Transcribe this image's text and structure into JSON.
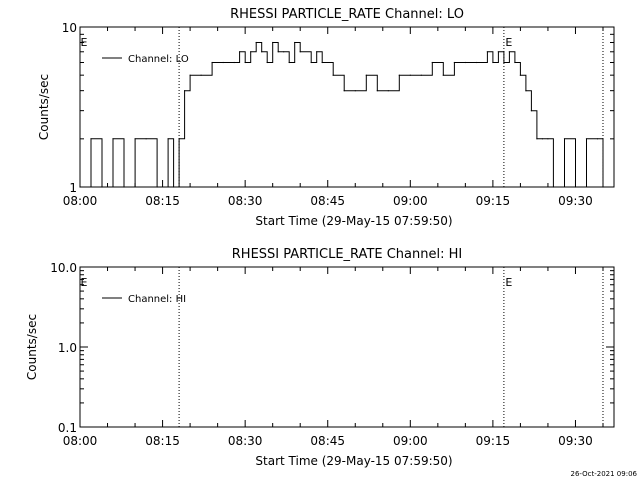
{
  "footer": {
    "date_stamp": "26-Oct-2021 09:06"
  },
  "chart_data": [
    {
      "type": "line",
      "title": "RHESSI PARTICLE_RATE Channel: LO",
      "xlabel": "Start Time (29-May-15 07:59:50)",
      "ylabel": "Counts/sec",
      "yscale": "log",
      "xlim": [
        "08:00",
        "09:37"
      ],
      "ylim": [
        1,
        10
      ],
      "x_ticks": [
        "08:00",
        "08:15",
        "08:30",
        "08:45",
        "09:00",
        "09:15",
        "09:30"
      ],
      "y_ticks": [
        "1",
        "10"
      ],
      "grid": false,
      "legend": {
        "position": "top-left",
        "entries": [
          "Channel: LO"
        ]
      },
      "marker_lines": [
        "08:18",
        "09:17",
        "09:35"
      ],
      "annotations": [
        "E",
        "E"
      ],
      "series": [
        {
          "name": "Channel: LO",
          "x": [
            "08:00",
            "08:02",
            "08:04",
            "08:06",
            "08:08",
            "08:10",
            "08:12",
            "08:14",
            "08:16",
            "08:17",
            "08:18",
            "08:19",
            "08:20",
            "08:22",
            "08:24",
            "08:26",
            "08:28",
            "08:29",
            "08:30",
            "08:31",
            "08:32",
            "08:33",
            "08:34",
            "08:35",
            "08:36",
            "08:37",
            "08:38",
            "08:39",
            "08:40",
            "08:42",
            "08:43",
            "08:44",
            "08:46",
            "08:48",
            "08:50",
            "08:52",
            "08:54",
            "08:56",
            "08:58",
            "09:00",
            "09:02",
            "09:04",
            "09:06",
            "09:08",
            "09:10",
            "09:12",
            "09:14",
            "09:15",
            "09:16",
            "09:17",
            "09:18",
            "09:19",
            "09:20",
            "09:21",
            "09:22",
            "09:23",
            "09:24",
            "09:25",
            "09:26",
            "09:28",
            "09:30",
            "09:32",
            "09:34",
            "09:35"
          ],
          "y": [
            1,
            2,
            1,
            2,
            1,
            2,
            2,
            1,
            2,
            1,
            2,
            4,
            5,
            5,
            6,
            6,
            6,
            7,
            6,
            7,
            8,
            7,
            6,
            8,
            7,
            7,
            6,
            8,
            7,
            6,
            7,
            6,
            5,
            4,
            4,
            5,
            4,
            4,
            5,
            5,
            5,
            6,
            5,
            6,
            6,
            6,
            7,
            6,
            7,
            6,
            7,
            6,
            5,
            4,
            3,
            2,
            2,
            2,
            1,
            2,
            1,
            2,
            2,
            1
          ]
        }
      ]
    },
    {
      "type": "line",
      "title": "RHESSI PARTICLE_RATE Channel: HI",
      "xlabel": "Start Time (29-May-15 07:59:50)",
      "ylabel": "Counts/sec",
      "yscale": "log",
      "xlim": [
        "08:00",
        "09:37"
      ],
      "ylim": [
        0.1,
        10
      ],
      "x_ticks": [
        "08:00",
        "08:15",
        "08:30",
        "08:45",
        "09:00",
        "09:15",
        "09:30"
      ],
      "y_ticks": [
        "0.1",
        "1.0",
        "10.0"
      ],
      "grid": false,
      "legend": {
        "position": "top-left",
        "entries": [
          "Channel: HI"
        ]
      },
      "marker_lines": [
        "08:18",
        "09:17",
        "09:35"
      ],
      "annotations": [
        "E",
        "E"
      ],
      "series": [
        {
          "name": "Channel: HI",
          "x": [],
          "y": []
        }
      ]
    }
  ]
}
